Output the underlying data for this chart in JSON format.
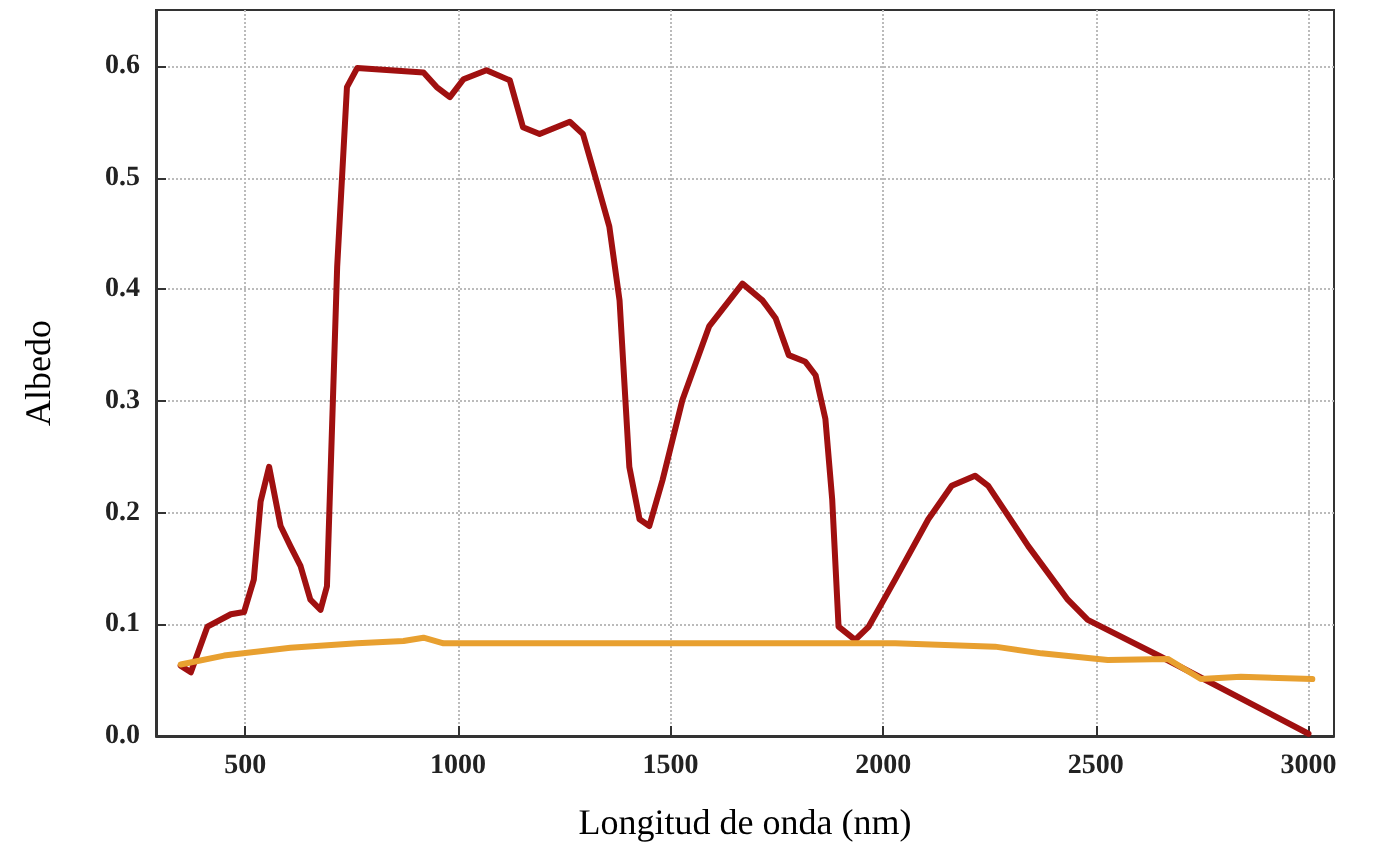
{
  "chart_data": {
    "type": "line",
    "xlabel": "Longitud de onda (nm)",
    "ylabel": "Albedo",
    "xlim": [
      290,
      3060
    ],
    "ylim": [
      0,
      0.65
    ],
    "xticks": [
      500,
      1000,
      1500,
      2000,
      2500,
      3000
    ],
    "yticks": [
      {
        "value": 0,
        "label": "0.0"
      },
      0.1,
      0.2,
      0.3,
      0.4,
      0.5,
      0.6
    ],
    "grid": true,
    "marker": "none",
    "line_style": "solid",
    "series": [
      {
        "color": "#a01010",
        "x": [
          348,
          372,
          411,
          466,
          497,
          520,
          536,
          556,
          583,
          606,
          630,
          653,
          677,
          692,
          716,
          739,
          763,
          841,
          919,
          950,
          981,
          1013,
          1067,
          1122,
          1153,
          1192,
          1263,
          1294,
          1325,
          1356,
          1380,
          1403,
          1427,
          1450,
          1481,
          1528,
          1591,
          1669,
          1716,
          1747,
          1778,
          1817,
          1841,
          1864,
          1880,
          1895,
          1934,
          1966,
          2028,
          2106,
          2161,
          2216,
          2247,
          2341,
          2434,
          2481,
          2653,
          3000
        ],
        "values": [
          0.063,
          0.057,
          0.098,
          0.109,
          0.111,
          0.14,
          0.21,
          0.241,
          0.188,
          0.17,
          0.152,
          0.122,
          0.113,
          0.134,
          0.42,
          0.581,
          0.598,
          0.596,
          0.594,
          0.581,
          0.572,
          0.588,
          0.596,
          0.587,
          0.545,
          0.539,
          0.55,
          0.539,
          0.498,
          0.456,
          0.39,
          0.241,
          0.194,
          0.188,
          0.229,
          0.301,
          0.367,
          0.405,
          0.39,
          0.374,
          0.341,
          0.335,
          0.323,
          0.284,
          0.212,
          0.098,
          0.086,
          0.098,
          0.14,
          0.194,
          0.224,
          0.233,
          0.224,
          0.17,
          0.122,
          0.104,
          0.071,
          0.002
        ]
      },
      {
        "color": "#e8a030",
        "x": [
          348,
          450,
          606,
          763,
          872,
          919,
          966,
          1309,
          1716,
          2028,
          2263,
          2372,
          2528,
          2669,
          2747,
          2841,
          3009
        ],
        "values": [
          0.064,
          0.072,
          0.079,
          0.083,
          0.085,
          0.088,
          0.083,
          0.083,
          0.083,
          0.083,
          0.08,
          0.074,
          0.068,
          0.069,
          0.051,
          0.053,
          0.051
        ]
      }
    ]
  }
}
